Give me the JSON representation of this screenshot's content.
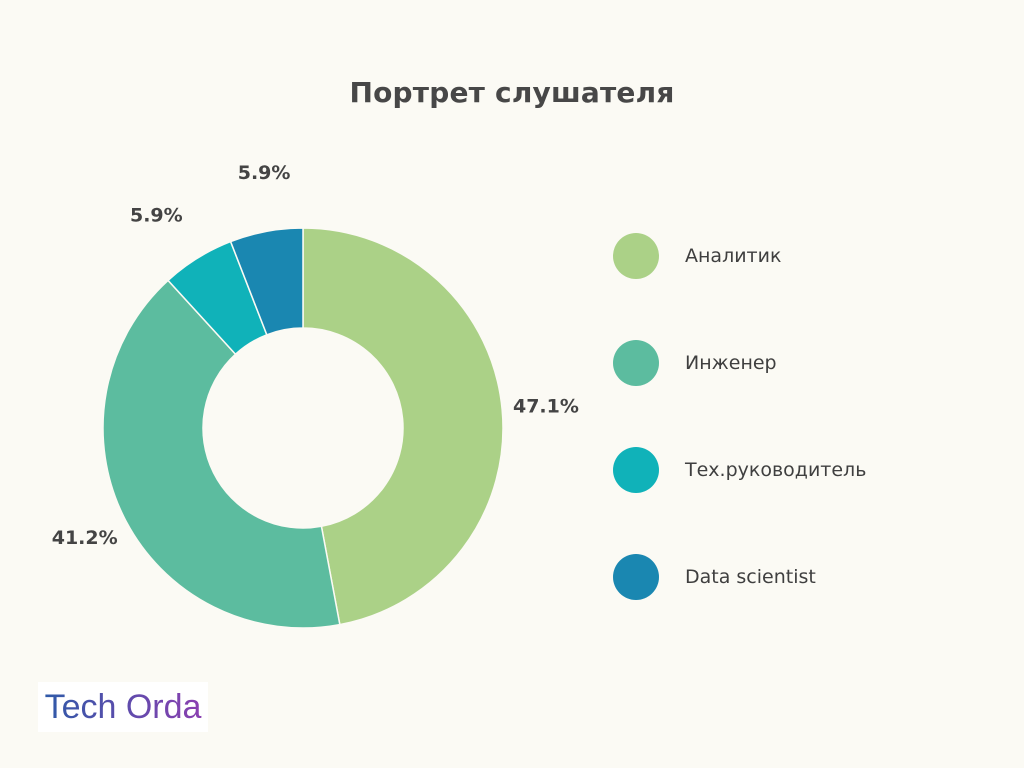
{
  "chart_data": {
    "type": "pie",
    "title": "Портрет слушателя",
    "categories": [
      "Аналитик",
      "Инженер",
      "Тех.руководитель",
      "Data scientist"
    ],
    "values": [
      47.1,
      41.2,
      5.9,
      5.9
    ],
    "labels": [
      "47.1%",
      "41.2%",
      "5.9%",
      "5.9%"
    ],
    "colors": [
      "#abd187",
      "#5cbc9f",
      "#10b2b9",
      "#1a87b1"
    ],
    "donut": true,
    "legend": "right"
  },
  "logo": {
    "text": "Tech Orda"
  }
}
